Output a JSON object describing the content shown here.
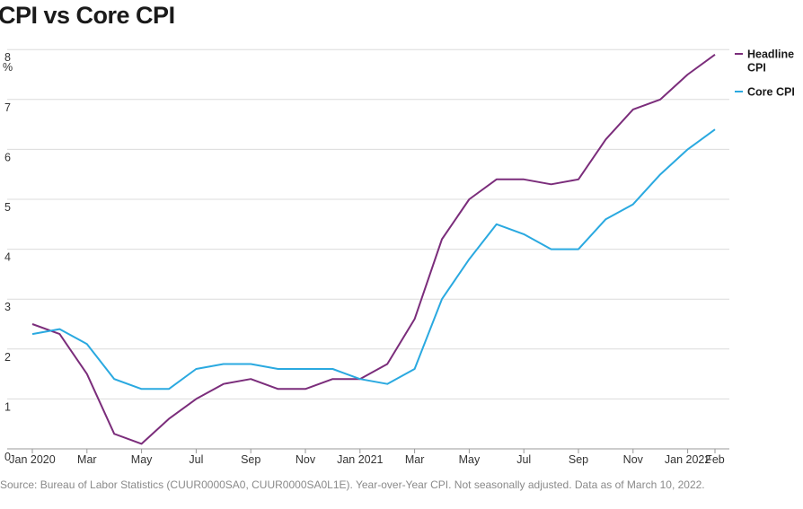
{
  "chart_data": {
    "type": "line",
    "title": "CPI vs Core CPI",
    "ylabel": "%",
    "ylim": [
      0,
      8
    ],
    "yticks": [
      "0",
      "1",
      "2",
      "3",
      "4",
      "5",
      "6",
      "7",
      "8"
    ],
    "x": [
      "Jan 2020",
      "Feb 2020",
      "Mar 2020",
      "Apr 2020",
      "May 2020",
      "Jun 2020",
      "Jul 2020",
      "Aug 2020",
      "Sep 2020",
      "Oct 2020",
      "Nov 2020",
      "Dec 2020",
      "Jan 2021",
      "Feb 2021",
      "Mar 2021",
      "Apr 2021",
      "May 2021",
      "Jun 2021",
      "Jul 2021",
      "Aug 2021",
      "Sep 2021",
      "Oct 2021",
      "Nov 2021",
      "Dec 2021",
      "Jan 2022",
      "Feb 2022"
    ],
    "xtick_labels": [
      "Jan 2020",
      "",
      "Mar",
      "",
      "May",
      "",
      "Jul",
      "",
      "Sep",
      "",
      "Nov",
      "",
      "Jan 2021",
      "",
      "Mar",
      "",
      "May",
      "",
      "Jul",
      "",
      "Sep",
      "",
      "Nov",
      "",
      "Jan 2022",
      "Feb"
    ],
    "series": [
      {
        "name": "Headline CPI",
        "color": "#7b2d7b",
        "values": [
          2.5,
          2.3,
          1.5,
          0.3,
          0.1,
          0.6,
          1.0,
          1.3,
          1.4,
          1.2,
          1.2,
          1.4,
          1.4,
          1.7,
          2.6,
          4.2,
          5.0,
          5.4,
          5.4,
          5.3,
          5.4,
          6.2,
          6.8,
          7.0,
          7.5,
          7.9
        ]
      },
      {
        "name": "Core CPI",
        "color": "#2aa9e0",
        "values": [
          2.3,
          2.4,
          2.1,
          1.4,
          1.2,
          1.2,
          1.6,
          1.7,
          1.7,
          1.6,
          1.6,
          1.6,
          1.4,
          1.3,
          1.6,
          3.0,
          3.8,
          4.5,
          4.3,
          4.0,
          4.0,
          4.6,
          4.9,
          5.5,
          6.0,
          6.4
        ]
      }
    ],
    "legend": {
      "position": "top-right",
      "items": [
        "Headline CPI",
        "Core CPI"
      ]
    },
    "grid": true
  },
  "source": "Source: Bureau of Labor Statistics (CUUR0000SA0, CUUR0000SA0L1E). Year-over-Year CPI. Not seasonally adjusted. Data as of March 10, 2022."
}
